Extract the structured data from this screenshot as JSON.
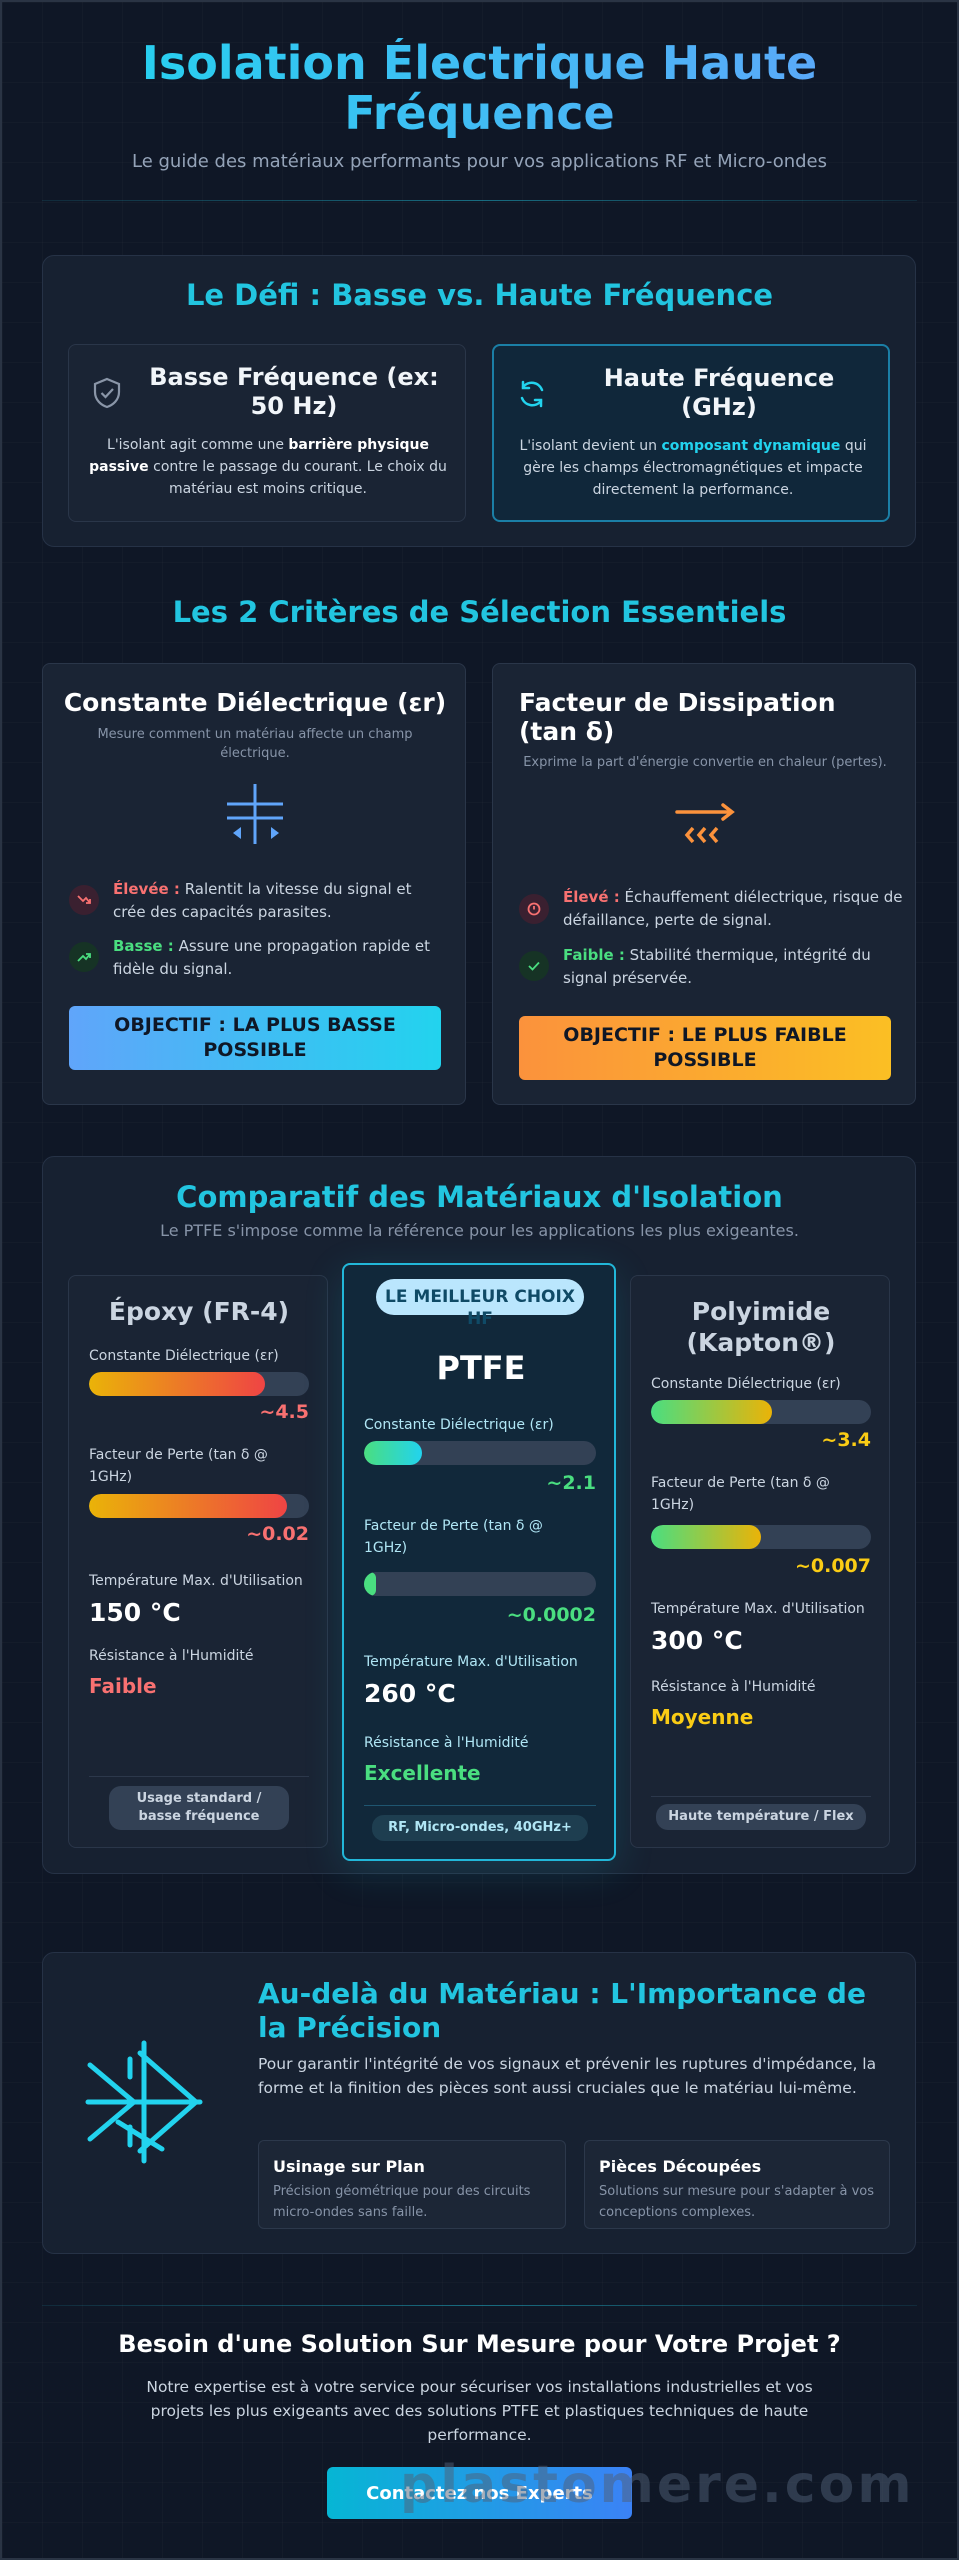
{
  "header": {
    "title": "Isolation Électrique Haute Fréquence",
    "subtitle": "Le guide des matériaux performants pour vos applications RF et Micro-ondes"
  },
  "challenge": {
    "title": "Le Défi : Basse vs. Haute Fréquence",
    "low": {
      "icon": "shield-icon",
      "title": "Basse Fréquence (ex: 50 Hz)",
      "text_before": "L'isolant agit comme une ",
      "text_strong": "barrière physique passive",
      "text_after": " contre le passage du courant. Le choix du matériau est moins critique."
    },
    "high": {
      "icon": "refresh-icon",
      "title": "Haute Fréquence (GHz)",
      "text_before": "L'isolant devient un ",
      "text_strong": "composant dynamique",
      "text_after": " qui gère les champs électromagnétiques et impacte directement la performance."
    }
  },
  "criteria": {
    "title": "Les 2 Critères de Sélection Essentiels",
    "dielectric": {
      "title": "Constante Diélectrique (εr)",
      "desc": "Mesure comment un matériau affecte un champ électrique.",
      "icon": "field-icon",
      "high_label": "Élevée :",
      "high_text": " Ralentit la vitesse du signal et crée des capacités parasites.",
      "low_label": "Basse :",
      "low_text": " Assure une propagation rapide et fidèle du signal.",
      "objective": "OBJECTIF : LA PLUS BASSE POSSIBLE"
    },
    "dissipation": {
      "title": "Facteur de Dissipation (tan δ)",
      "desc": "Exprime la part d'énergie convertie en chaleur (pertes).",
      "icon": "heat-icon",
      "high_label": "Élevé :",
      "high_text": " Échauffement diélectrique, risque de défaillance, perte de signal.",
      "low_label": "Faible :",
      "low_text": " Stabilité thermique, intégrité du signal préservée.",
      "objective": "OBJECTIF : LE PLUS FAIBLE POSSIBLE"
    }
  },
  "comparison": {
    "title": "Comparatif des Matériaux d'Isolation",
    "subtitle": "Le PTFE s'impose comme la référence pour les applications les plus exigeantes.",
    "labels": {
      "dielectric": "Constante Diélectrique (εr)",
      "loss": "Facteur de Perte (tan δ @ 1GHz)",
      "temp": "Température Max. d'Utilisation",
      "humidity": "Résistance à l'Humidité"
    },
    "materials": [
      {
        "name": "Époxy (FR-4)",
        "dielectric": "~4.5",
        "dielectric_fill": 0.8,
        "loss": "~0.02",
        "loss_fill": 0.9,
        "temp": "150 °C",
        "humidity": "Faible",
        "humidity_color": "#f87171",
        "tag": "Usage standard / basse fréquence",
        "value_color": "#f87171"
      },
      {
        "name": "PTFE",
        "badge": "LE MEILLEUR CHOIX HF",
        "dielectric": "~2.1",
        "dielectric_fill": 0.25,
        "loss": "~0.0002",
        "loss_fill": 0.05,
        "temp": "260 °C",
        "humidity": "Excellente",
        "humidity_color": "#4ade80",
        "tag": "RF, Micro-ondes, 40GHz+",
        "value_color": "#4ade80"
      },
      {
        "name": "Polyimide (Kapton®)",
        "dielectric": "~3.4",
        "dielectric_fill": 0.55,
        "loss": "~0.007",
        "loss_fill": 0.5,
        "temp": "300 °C",
        "humidity": "Moyenne",
        "humidity_color": "#facc15",
        "tag": "Haute température / Flex",
        "value_color": "#facc15"
      }
    ]
  },
  "precision": {
    "title": "Au-delà du Matériau : L'Importance de la Précision",
    "text": "Pour garantir l'intégrité de vos signaux et prévenir les ruptures d'impédance, la forme et la finition des pièces sont aussi cruciales que le matériau lui-même.",
    "icon": "network-icon",
    "features": [
      {
        "title": "Usinage sur Plan",
        "desc": "Précision géométrique pour des circuits micro-ondes sans faille."
      },
      {
        "title": "Pièces Découpées",
        "desc": "Solutions sur mesure pour s'adapter à vos conceptions complexes."
      }
    ]
  },
  "cta": {
    "title": "Besoin d'une Solution Sur Mesure pour Votre Projet ?",
    "text": "Notre expertise est à votre service pour sécuriser vos installations industrielles et vos projets les plus exigeants avec des solutions PTFE et plastiques techniques de haute performance.",
    "button": "Contactez nos Experts",
    "watermark": "plastomere.com"
  }
}
